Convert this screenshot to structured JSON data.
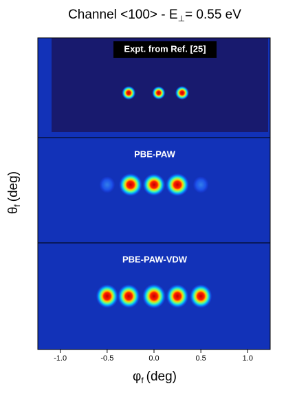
{
  "chart_data": {
    "type": "heatmap-panels",
    "title": {
      "main": "Channel <100> - E",
      "subscript": "⊥",
      "rest": "= 0.55 eV"
    },
    "x_label": {
      "symbol": "φ",
      "subscript": "f",
      "unit": "(deg)"
    },
    "y_label": {
      "symbol": "θ",
      "subscript": "f",
      "unit": "(deg)"
    },
    "xlim": [
      -1.24,
      1.24
    ],
    "xticks": [
      {
        "value": -1,
        "label": "-1.0"
      },
      -0.5,
      {
        "value": 0,
        "label": "0.0"
      },
      0.5,
      {
        "value": 1,
        "label": "1.0"
      }
    ],
    "panels": [
      {
        "label": "Expt. from Ref. [25]",
        "spots": [
          {
            "phi": -0.27,
            "intensity": 0.8
          },
          {
            "phi": 0.05,
            "intensity": 0.7
          },
          {
            "phi": 0.3,
            "intensity": 0.8
          }
        ]
      },
      {
        "label": "PBE-PAW",
        "spots": [
          {
            "phi": -0.5,
            "intensity": 0.2
          },
          {
            "phi": -0.25,
            "intensity": 1
          },
          {
            "phi": 0.0,
            "intensity": 0.9
          },
          {
            "phi": 0.25,
            "intensity": 1
          },
          {
            "phi": 0.5,
            "intensity": 0.2
          }
        ]
      },
      {
        "label": "PBE-PAW-VDW",
        "spots": [
          {
            "phi": -0.5,
            "intensity": 0.9
          },
          {
            "phi": -0.27,
            "intensity": 0.9
          },
          {
            "phi": 0.0,
            "intensity": 1
          },
          {
            "phi": 0.25,
            "intensity": 0.9
          },
          {
            "phi": 0.5,
            "intensity": 0.9
          }
        ]
      }
    ]
  }
}
